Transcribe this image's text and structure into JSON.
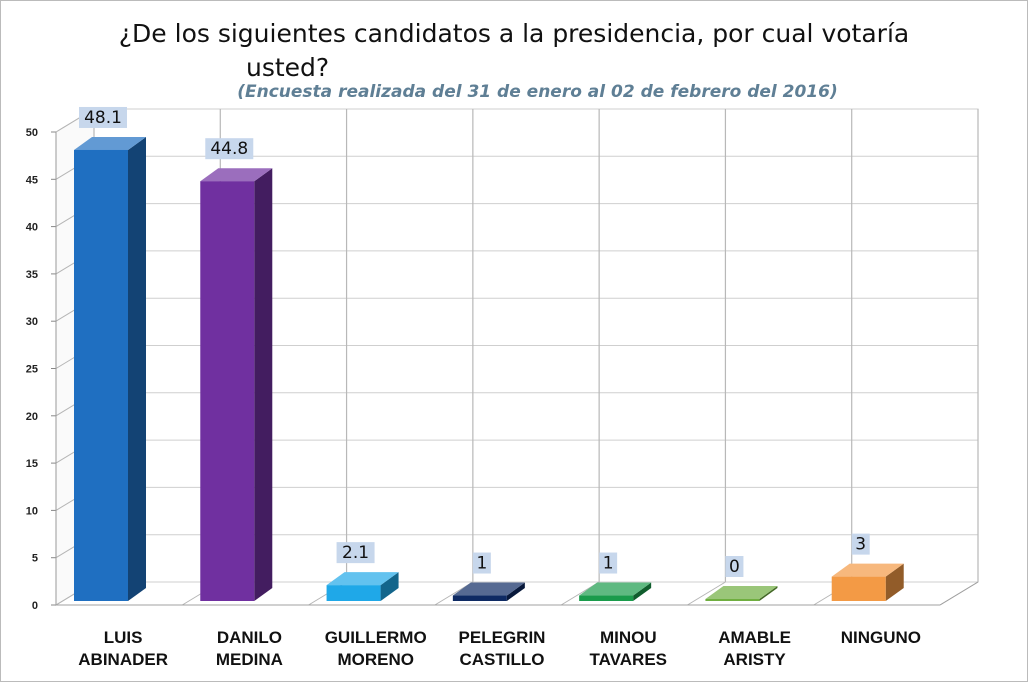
{
  "chart_data": {
    "type": "bar",
    "title": "¿De los siguientes candidatos a la presidencia, por cual votaría",
    "title_line2": "usted?",
    "subtitle": "(Encuesta realizada del 31 de enero al 02 de febrero del 2016)",
    "categories": [
      [
        "LUIS",
        "ABINADER"
      ],
      [
        "DANILO",
        "MEDINA"
      ],
      [
        "GUILLERMO",
        "MORENO"
      ],
      [
        "PELEGRIN",
        "CASTILLO"
      ],
      [
        "MINOU",
        "TAVARES"
      ],
      [
        "AMABLE",
        "ARISTY"
      ],
      [
        "NINGUNO"
      ]
    ],
    "values": [
      48.1,
      44.8,
      2.1,
      1,
      1,
      0,
      3
    ],
    "data_labels": [
      "48.1",
      "44.8",
      "2.1",
      "1",
      "1",
      "0",
      "3"
    ],
    "colors": [
      "#1f6fc1",
      "#7030a0",
      "#1fa8e8",
      "#0e2a63",
      "#1a9b4b",
      "#6fae3f",
      "#f39a45"
    ],
    "ylim": [
      0,
      50
    ],
    "yticks": [
      "0",
      "5",
      "10",
      "15",
      "20",
      "25",
      "30",
      "35",
      "40",
      "45",
      "50"
    ],
    "grid": true,
    "legend": "none",
    "style": "3d"
  }
}
